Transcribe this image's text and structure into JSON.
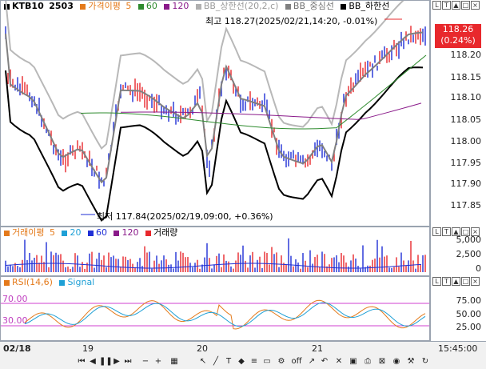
{
  "price_panel": {
    "symbol": "KTB10",
    "code": "2503",
    "ma_label": "가격이평",
    "ma5": "5",
    "ma60": "60",
    "ma120": "120",
    "bb_upper": "BB_상한선(20,2,c)",
    "bb_mid": "BB_중심선",
    "bb_lower": "BB_하한선",
    "high_annot": "최고 118.27(2025/02/21,14:20, -0.01%)",
    "low_annot": "최저 117.84(2025/02/19,09:00, +0.36%)",
    "current_price": "118.26",
    "current_change": "(0.24%)",
    "ticks": [
      "118.20",
      "118.15",
      "118.10",
      "118.05",
      "118.00",
      "117.95",
      "117.90",
      "117.85"
    ]
  },
  "volume_panel": {
    "ma_label": "거래이평",
    "ma5": "5",
    "ma20": "20",
    "ma60": "60",
    "ma120": "120",
    "vol_label": "거래량",
    "ticks": [
      "5,000",
      "2,500",
      "0"
    ]
  },
  "rsi_panel": {
    "label": "RSI(14,6)",
    "signal": "Signal",
    "level_high": "70.00",
    "level_low": "30.00",
    "ticks": [
      "75.00",
      "50.00",
      "25.00"
    ]
  },
  "time_axis": {
    "dates": [
      "02/18",
      "19",
      "20",
      "21"
    ],
    "time": "15:45:00"
  },
  "colors": {
    "up": "#e8282c",
    "down": "#1f2fd6",
    "ma5": "#e47a1b",
    "ma60": "#2e8b2e",
    "ma120": "#8a1a8a",
    "bb_upper": "#b0b0b0",
    "bb_mid": "#808080",
    "bb_lower": "#000000"
  }
}
